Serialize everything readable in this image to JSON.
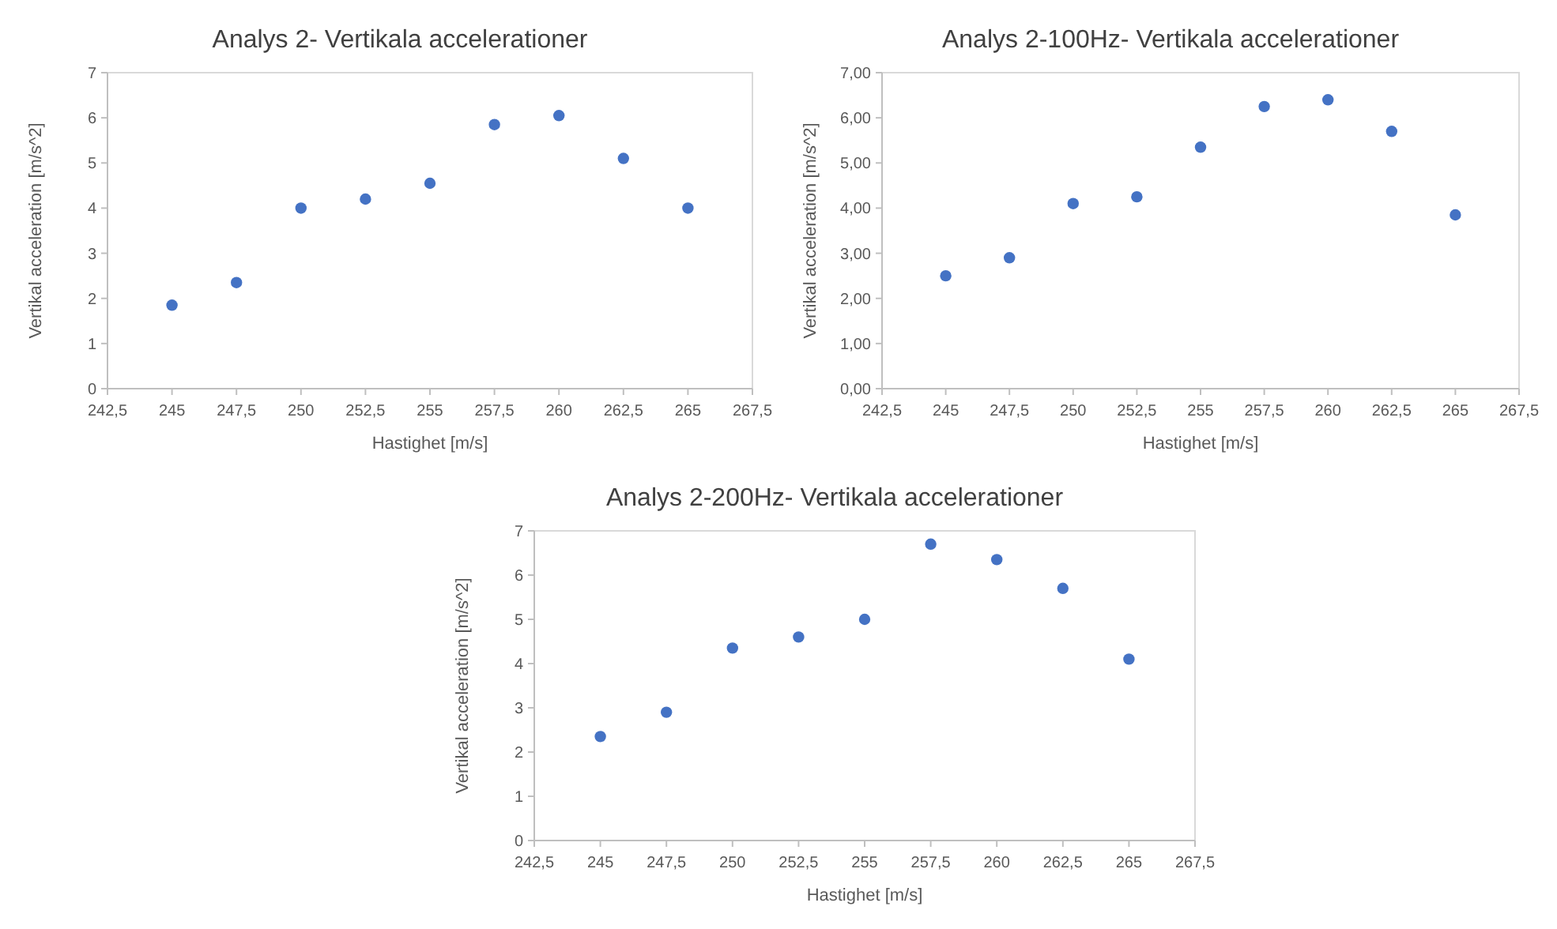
{
  "chart_data": [
    {
      "type": "scatter",
      "title": "Analys 2- Vertikala accelerationer",
      "xlabel": "Hastighet [m/s]",
      "ylabel": "Vertikal acceleration [m/s^2]",
      "marker": "circle",
      "grid": false,
      "x": [
        245,
        247.5,
        250,
        252.5,
        255,
        257.5,
        260,
        262.5,
        265
      ],
      "series": [
        {
          "color": "#4472c4",
          "values": [
            1.85,
            2.35,
            4.0,
            4.2,
            4.55,
            5.85,
            6.05,
            5.1,
            4.0
          ]
        }
      ],
      "xlim": [
        242.5,
        267.5
      ],
      "xticks": [
        {
          "value": 242.5,
          "label": "242,5"
        },
        245,
        {
          "value": 247.5,
          "label": "247,5"
        },
        250,
        {
          "value": 252.5,
          "label": "252,5"
        },
        255,
        {
          "value": 257.5,
          "label": "257,5"
        },
        260,
        {
          "value": 262.5,
          "label": "262,5"
        },
        265,
        {
          "value": 267.5,
          "label": "267,5"
        }
      ],
      "ylim": [
        0,
        7
      ],
      "yticks": [
        0,
        1,
        2,
        3,
        4,
        5,
        6,
        7
      ]
    },
    {
      "type": "scatter",
      "title": "Analys 2-100Hz- Vertikala accelerationer",
      "xlabel": "Hastighet [m/s]",
      "ylabel": "Vertikal acceleration [m/s^2]",
      "marker": "circle",
      "grid": false,
      "x": [
        245,
        247.5,
        250,
        252.5,
        255,
        257.5,
        260,
        262.5,
        265
      ],
      "series": [
        {
          "color": "#4472c4",
          "values": [
            2.5,
            2.9,
            4.1,
            4.25,
            5.35,
            6.25,
            6.4,
            5.7,
            3.85
          ]
        }
      ],
      "xlim": [
        242.5,
        267.5
      ],
      "xticks": [
        {
          "value": 242.5,
          "label": "242,5"
        },
        245,
        {
          "value": 247.5,
          "label": "247,5"
        },
        250,
        {
          "value": 252.5,
          "label": "252,5"
        },
        255,
        {
          "value": 257.5,
          "label": "257,5"
        },
        260,
        {
          "value": 262.5,
          "label": "262,5"
        },
        265,
        {
          "value": 267.5,
          "label": "267,5"
        }
      ],
      "ylim": [
        0,
        7
      ],
      "yticks": [
        {
          "value": 0,
          "label": "0,00"
        },
        {
          "value": 1,
          "label": "1,00"
        },
        {
          "value": 2,
          "label": "2,00"
        },
        {
          "value": 3,
          "label": "3,00"
        },
        {
          "value": 4,
          "label": "4,00"
        },
        {
          "value": 5,
          "label": "5,00"
        },
        {
          "value": 6,
          "label": "6,00"
        },
        {
          "value": 7,
          "label": "7,00"
        }
      ]
    },
    {
      "type": "scatter",
      "title": "Analys 2-200Hz- Vertikala accelerationer",
      "xlabel": "Hastighet [m/s]",
      "ylabel": "Vertikal acceleration [m/s^2]",
      "marker": "circle",
      "grid": false,
      "x": [
        245,
        247.5,
        250,
        252.5,
        255,
        257.5,
        260,
        262.5,
        265
      ],
      "series": [
        {
          "color": "#4472c4",
          "values": [
            2.35,
            2.9,
            4.35,
            4.6,
            5.0,
            6.7,
            6.35,
            5.7,
            4.1
          ]
        }
      ],
      "xlim": [
        242.5,
        267.5
      ],
      "xticks": [
        {
          "value": 242.5,
          "label": "242,5"
        },
        245,
        {
          "value": 247.5,
          "label": "247,5"
        },
        250,
        {
          "value": 252.5,
          "label": "252,5"
        },
        255,
        {
          "value": 257.5,
          "label": "257,5"
        },
        260,
        {
          "value": 262.5,
          "label": "262,5"
        },
        265,
        {
          "value": 267.5,
          "label": "267,5"
        }
      ],
      "ylim": [
        0,
        7
      ],
      "yticks": [
        0,
        1,
        2,
        3,
        4,
        5,
        6,
        7
      ]
    }
  ]
}
